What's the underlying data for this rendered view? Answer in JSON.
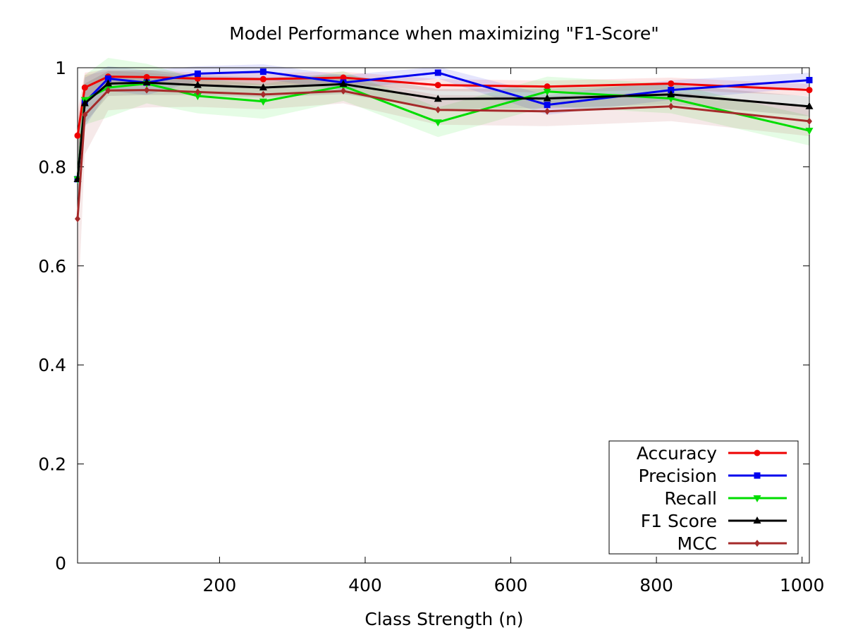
{
  "chart_data": {
    "type": "line",
    "title": "Model Performance when maximizing \"F1-Score\"",
    "xlabel": "Class Strength (n)",
    "ylabel": "",
    "xlim": [
      5,
      1010
    ],
    "ylim": [
      0,
      1
    ],
    "xticks": [
      200,
      400,
      600,
      800,
      1000
    ],
    "xtick_labels": [
      "200",
      "400",
      "600",
      "800",
      "1000"
    ],
    "yticks": [
      0,
      0.2,
      0.4,
      0.6,
      0.8,
      1
    ],
    "ytick_labels": [
      "0",
      "0.2",
      "0.4",
      "0.6",
      "0.8",
      "1"
    ],
    "grid": false,
    "legend_position": "bottom-right",
    "x": [
      5,
      15,
      47,
      100,
      170,
      260,
      370,
      500,
      650,
      820,
      1010
    ],
    "series": [
      {
        "name": "Accuracy",
        "color": "#ee0000",
        "marker": "circle",
        "values": [
          0.863,
          0.96,
          0.982,
          0.981,
          0.978,
          0.977,
          0.98,
          0.965,
          0.962,
          0.968,
          0.955
        ],
        "band": [
          0.05,
          0.03,
          0.015,
          0.015,
          0.012,
          0.012,
          0.012,
          0.012,
          0.012,
          0.012,
          0.012
        ]
      },
      {
        "name": "Precision",
        "color": "#0000ee",
        "marker": "square",
        "values": [
          0.775,
          0.93,
          0.978,
          0.97,
          0.988,
          0.992,
          0.97,
          0.99,
          0.925,
          0.955,
          0.975
        ],
        "band": [
          0.08,
          0.05,
          0.025,
          0.025,
          0.015,
          0.015,
          0.015,
          0.012,
          0.02,
          0.02,
          0.015
        ]
      },
      {
        "name": "Recall",
        "color": "#00dd00",
        "marker": "triangle-down",
        "values": [
          0.775,
          0.935,
          0.96,
          0.968,
          0.943,
          0.932,
          0.963,
          0.89,
          0.952,
          0.938,
          0.873
        ],
        "band": [
          0.08,
          0.05,
          0.06,
          0.04,
          0.035,
          0.035,
          0.03,
          0.03,
          0.03,
          0.03,
          0.03
        ]
      },
      {
        "name": "F1 Score",
        "color": "#000000",
        "marker": "triangle-up",
        "values": [
          0.775,
          0.928,
          0.968,
          0.97,
          0.965,
          0.96,
          0.967,
          0.937,
          0.938,
          0.946,
          0.922
        ],
        "band": [
          0.07,
          0.04,
          0.025,
          0.025,
          0.02,
          0.02,
          0.02,
          0.02,
          0.02,
          0.02,
          0.02
        ]
      },
      {
        "name": "MCC",
        "color": "#a52a2a",
        "marker": "diamond",
        "values": [
          0.695,
          0.905,
          0.954,
          0.955,
          0.951,
          0.946,
          0.953,
          0.915,
          0.912,
          0.922,
          0.892
        ],
        "band": [
          0.2,
          0.08,
          0.04,
          0.035,
          0.03,
          0.03,
          0.025,
          0.03,
          0.03,
          0.03,
          0.03
        ]
      }
    ]
  }
}
